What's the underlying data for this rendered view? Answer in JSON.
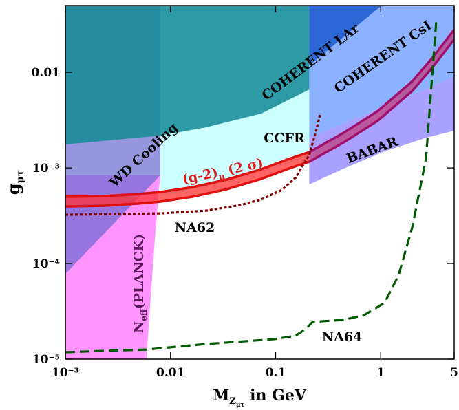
{
  "chart_data": {
    "type": "exclusion",
    "xlabel": [
      "M",
      "Z",
      "μτ",
      " in GeV"
    ],
    "ylabel": [
      "g",
      "μτ"
    ],
    "xscale": "log",
    "yscale": "log",
    "xlim": [
      0.001,
      5
    ],
    "ylim": [
      1e-05,
      0.05
    ],
    "xticks": [
      {
        "value": 0.001,
        "label": "10⁻³"
      },
      0.01,
      0.1,
      1,
      5
    ],
    "yticks": [
      {
        "value": 1e-05,
        "label": "10⁻⁵"
      },
      {
        "value": 0.0001,
        "label": "10⁻⁴"
      },
      {
        "value": 0.001,
        "label": "10⁻³"
      },
      0.01
    ],
    "regions": [
      {
        "color": "#ccffff",
        "opacity": 1,
        "x": [
          0.00798,
          0.209,
          0.209,
          0.0343,
          0.00798
        ],
        "y": [
          0.05,
          0.05,
          0.0013,
          0.0007,
          0.0005
        ]
      },
      {
        "color": "#ff70ff",
        "opacity": 0.75,
        "x": [
          0.001,
          0.00798,
          0.00708,
          0.0059,
          0.001
        ],
        "y": [
          0.000834,
          0.000834,
          0.000173,
          1e-05,
          1e-05
        ]
      },
      {
        "color": "#6a6ad0",
        "opacity": 0.7,
        "x": [
          0.001,
          0.00798,
          0.00798,
          0.001
        ],
        "y": [
          0.05,
          0.05,
          0.000834,
          7.8e-05
        ]
      },
      {
        "color": "#178c98",
        "opacity": 0.88,
        "x": [
          0.001,
          0.209,
          0.209,
          0.073,
          0.0219,
          0.00798,
          0.001
        ],
        "y": [
          0.05,
          0.05,
          0.00661,
          0.0037,
          0.00266,
          0.00218,
          0.00176
        ]
      },
      {
        "color": "#aaa0ff",
        "opacity": 1,
        "x": [
          0.209,
          0.209,
          5,
          5,
          2.7,
          1.09,
          0.444
        ],
        "y": [
          0.000672,
          0.00207,
          0.00891,
          0.00245,
          0.00207,
          0.00149,
          0.000984
        ]
      },
      {
        "color": "#7fa8ff",
        "opacity": 0.9,
        "x": [
          0.209,
          5,
          5,
          0.209
        ],
        "y": [
          0.05,
          0.05,
          0.00891,
          0.00207
        ]
      },
      {
        "color": "#2060d0",
        "opacity": 0.9,
        "x": [
          0.209,
          1.02,
          0.209
        ],
        "y": [
          0.05,
          0.05,
          0.0118
        ]
      }
    ],
    "bands": [
      {
        "color": "#ff3030",
        "edge": "#e01010",
        "x": [
          0.001,
          0.00229,
          0.00485,
          0.00798,
          0.0162,
          0.0343,
          0.073,
          0.133,
          0.209
        ],
        "upper": [
          0.000499,
          0.000507,
          0.000533,
          0.00056,
          0.000629,
          0.000755,
          0.000968,
          0.00124,
          0.00146
        ],
        "lower": [
          0.000395,
          0.000402,
          0.000423,
          0.000444,
          0.000499,
          0.000598,
          0.000767,
          0.000984,
          0.00116
        ]
      },
      {
        "color": "#c04080",
        "edge": "#a0106a",
        "x": [
          0.209,
          0.444,
          0.942,
          2.0,
          3.14,
          5
        ],
        "upper": [
          0.00146,
          0.00233,
          0.00395,
          0.00806,
          0.0144,
          0.0279
        ],
        "lower": [
          0.00116,
          0.00185,
          0.00313,
          0.0064,
          0.0114,
          0.0221
        ]
      }
    ],
    "curves": [
      {
        "color": "#800000",
        "style": "dotted",
        "x": [
          0.001,
          0.00798,
          0.0219,
          0.0465,
          0.073,
          0.115,
          0.155,
          0.209,
          0.243,
          0.266
        ],
        "y": [
          0.000324,
          0.000335,
          0.000358,
          0.000409,
          0.000467,
          0.000589,
          0.000793,
          0.00137,
          0.00245,
          0.0037
        ]
      },
      {
        "color": "#005a00",
        "style": "dashed",
        "x": [
          0.001,
          0.00229,
          0.0059,
          0.0219,
          0.0984,
          0.155,
          0.194,
          0.225,
          0.444,
          0.697,
          1.09,
          1.48,
          2.0,
          2.7,
          3.38
        ],
        "y": [
          1.18e-05,
          1.22e-05,
          1.26e-05,
          1.44e-05,
          1.62e-05,
          1.76e-05,
          2.07e-05,
          2.45e-05,
          2.57e-05,
          2.89e-05,
          3.89e-05,
          7.54e-05,
          0.000241,
          0.00126,
          0.0347
        ]
      }
    ],
    "annotations": [
      {
        "text": "WD Cooling"
      },
      {
        "text": "COHERENT LAr"
      },
      {
        "text": "COHERENT CsI"
      },
      {
        "text": "CCFR"
      },
      {
        "text": "BABAR"
      },
      {
        "parts": [
          "(g-2)",
          "μ",
          " (2 σ)"
        ]
      },
      {
        "text": "NA62"
      },
      {
        "text": "NA64"
      },
      {
        "parts": [
          "N",
          "eff",
          "(PLANCK)"
        ]
      }
    ]
  }
}
